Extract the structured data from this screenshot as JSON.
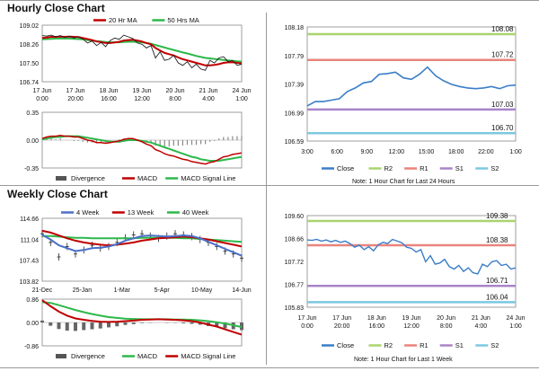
{
  "sections": {
    "hourly_title": "Hourly Close Chart",
    "weekly_title": "Weekly Close Chart"
  },
  "notes": {
    "hourly": "Note: 1 Hour Chart for Last 24 Hours",
    "weekly": "Note: 1 Hour Chart for Last 1 Week"
  },
  "colors": {
    "close": "#3a7dc9",
    "r2": "#a8d46f",
    "r1": "#e8847c",
    "s1": "#a884c8",
    "s2": "#7cc8e0",
    "ma20": "#c00000",
    "ma50": "#2db84b",
    "ma4": "#4a6fc9",
    "ma13": "#c00000",
    "ma40": "#2db84b",
    "macd": "#c00000",
    "signal": "#2db84b",
    "divergence": "#555555"
  },
  "chart_data": [
    {
      "id": "hourly_price",
      "type": "line",
      "ylim": [
        106.74,
        109.02
      ],
      "yticks": [
        "109.02",
        "108.26",
        "107.50",
        "106.74"
      ],
      "xticks": [
        "17 Jun\n0:00",
        "17 Jun\n20:00",
        "18 Jun\n16:00",
        "19 Jun\n12:00",
        "20 Jun\n8:00",
        "21 Jun\n4:00",
        "24 Jun\n1:00"
      ],
      "legend": [
        "20 Hr MA",
        "50 Hrs MA"
      ],
      "series": [
        {
          "name": "Close",
          "values": [
            108.6,
            108.58,
            108.62,
            108.55,
            108.6,
            108.52,
            108.58,
            108.5,
            108.55,
            108.45,
            108.3,
            108.38,
            108.2,
            108.32,
            108.15,
            108.4,
            108.5,
            108.45,
            108.62,
            108.55,
            108.48,
            108.3,
            108.25,
            108.1,
            108.2,
            107.7,
            107.95,
            107.6,
            107.65,
            107.8,
            107.5,
            107.4,
            107.55,
            107.3,
            107.45,
            107.25,
            107.2,
            107.6,
            107.5,
            107.7,
            107.75,
            107.55,
            107.6,
            107.4,
            107.45
          ]
        },
        {
          "name": "20 Hr MA",
          "values": [
            108.5,
            108.52,
            108.55,
            108.55,
            108.56,
            108.55,
            108.56,
            108.55,
            108.54,
            108.5,
            108.46,
            108.42,
            108.36,
            108.34,
            108.3,
            108.3,
            108.32,
            108.35,
            108.4,
            108.42,
            108.43,
            108.4,
            108.36,
            108.3,
            108.25,
            108.1,
            108.0,
            107.9,
            107.85,
            107.8,
            107.72,
            107.65,
            107.6,
            107.55,
            107.5,
            107.45,
            107.4,
            107.4,
            107.42,
            107.45,
            107.5,
            107.52,
            107.53,
            107.5,
            107.48
          ]
        },
        {
          "name": "50 Hrs MA",
          "values": [
            108.45,
            108.46,
            108.47,
            108.48,
            108.48,
            108.48,
            108.48,
            108.47,
            108.46,
            108.45,
            108.42,
            108.4,
            108.38,
            108.36,
            108.34,
            108.33,
            108.33,
            108.33,
            108.34,
            108.35,
            108.35,
            108.34,
            108.33,
            108.3,
            108.27,
            108.22,
            108.17,
            108.12,
            108.07,
            108.02,
            107.97,
            107.92,
            107.88,
            107.83,
            107.78,
            107.74,
            107.7,
            107.68,
            107.66,
            107.64,
            107.62,
            107.6,
            107.58,
            107.56,
            107.55
          ]
        }
      ]
    },
    {
      "id": "hourly_macd",
      "type": "line",
      "ylim": [
        -0.35,
        0.35
      ],
      "yticks": [
        "0.35",
        "0.00",
        "-0.35"
      ],
      "legend": [
        "Divergence",
        "MACD",
        "MACD Signal Line"
      ],
      "series": [
        {
          "name": "MACD",
          "values": [
            0.02,
            0.04,
            0.05,
            0.05,
            0.06,
            0.05,
            0.05,
            0.04,
            0.04,
            0.02,
            0.0,
            -0.01,
            -0.03,
            -0.03,
            -0.04,
            -0.03,
            -0.02,
            -0.01,
            0.01,
            0.02,
            0.02,
            0.0,
            -0.02,
            -0.05,
            -0.07,
            -0.12,
            -0.14,
            -0.17,
            -0.19,
            -0.2,
            -0.22,
            -0.24,
            -0.25,
            -0.27,
            -0.28,
            -0.29,
            -0.3,
            -0.28,
            -0.27,
            -0.24,
            -0.21,
            -0.2,
            -0.18,
            -0.17,
            -0.16
          ]
        },
        {
          "name": "MACD Signal Line",
          "values": [
            0.01,
            0.02,
            0.03,
            0.04,
            0.04,
            0.05,
            0.05,
            0.05,
            0.05,
            0.04,
            0.03,
            0.02,
            0.01,
            0.0,
            -0.01,
            -0.02,
            -0.02,
            -0.02,
            -0.01,
            0.0,
            0.0,
            0.0,
            -0.01,
            -0.02,
            -0.03,
            -0.05,
            -0.07,
            -0.09,
            -0.11,
            -0.13,
            -0.15,
            -0.17,
            -0.19,
            -0.21,
            -0.22,
            -0.24,
            -0.25,
            -0.26,
            -0.26,
            -0.26,
            -0.25,
            -0.24,
            -0.23,
            -0.22,
            -0.21
          ]
        },
        {
          "name": "Divergence",
          "values": [
            0.01,
            0.02,
            0.02,
            0.01,
            0.02,
            0.0,
            0.0,
            -0.01,
            -0.01,
            -0.02,
            -0.03,
            -0.03,
            -0.04,
            -0.03,
            -0.03,
            -0.01,
            0.0,
            0.01,
            0.02,
            0.02,
            0.02,
            0.0,
            -0.01,
            -0.03,
            -0.04,
            -0.07,
            -0.07,
            -0.08,
            -0.08,
            -0.07,
            -0.07,
            -0.07,
            -0.06,
            -0.06,
            -0.06,
            -0.05,
            -0.05,
            -0.02,
            -0.01,
            0.02,
            0.04,
            0.04,
            0.05,
            0.05,
            0.05
          ]
        }
      ]
    },
    {
      "id": "hourly_levels",
      "type": "line",
      "ylim": [
        106.59,
        108.18
      ],
      "yticks": [
        "108.18",
        "107.79",
        "107.39",
        "106.99",
        "106.59"
      ],
      "xticks": [
        "3:00",
        "6:00",
        "9:00",
        "12:00",
        "15:00",
        "18:00",
        "22:00",
        "1:00"
      ],
      "legend": [
        "Close",
        "R2",
        "R1",
        "S1",
        "S2"
      ],
      "levels": {
        "R2": 108.08,
        "R1": 107.72,
        "S1": 107.03,
        "S2": 106.7
      },
      "level_labels": [
        "108.08",
        "107.72",
        "107.03",
        "106.70"
      ],
      "series": [
        {
          "name": "Close",
          "values": [
            107.08,
            107.14,
            107.14,
            107.16,
            107.18,
            107.28,
            107.33,
            107.4,
            107.42,
            107.52,
            107.53,
            107.55,
            107.47,
            107.45,
            107.52,
            107.62,
            107.5,
            107.43,
            107.38,
            107.35,
            107.33,
            107.32,
            107.33,
            107.35,
            107.32,
            107.36,
            107.37
          ]
        }
      ]
    },
    {
      "id": "weekly_price",
      "type": "line",
      "ylim": [
        103.82,
        114.66
      ],
      "yticks": [
        "114.66",
        "111.04",
        "107.43",
        "103.82"
      ],
      "xticks": [
        "21-Dec",
        "25-Jan",
        "1-Mar",
        "5-Apr",
        "10-May",
        "14-Jun"
      ],
      "legend": [
        "4 Week",
        "13 Week",
        "40 Week"
      ],
      "series": [
        {
          "name": "Close",
          "values": [
            112.0,
            110.5,
            108.0,
            109.8,
            108.5,
            109.2,
            110.0,
            109.5,
            109.8,
            110.5,
            111.3,
            111.8,
            112.0,
            111.6,
            111.2,
            111.6,
            112.0,
            111.8,
            111.5,
            111.0,
            110.5,
            109.8,
            109.0,
            108.5,
            107.8
          ]
        },
        {
          "name": "4 Week",
          "values": [
            111.8,
            111.0,
            110.0,
            109.5,
            109.0,
            109.2,
            109.5,
            109.6,
            109.8,
            110.2,
            110.8,
            111.2,
            111.6,
            111.7,
            111.6,
            111.5,
            111.6,
            111.7,
            111.6,
            111.2,
            110.6,
            110.0,
            109.4,
            108.8,
            108.2
          ]
        },
        {
          "name": "13 Week",
          "values": [
            112.5,
            112.2,
            111.7,
            111.2,
            110.8,
            110.5,
            110.3,
            110.1,
            110.0,
            110.1,
            110.3,
            110.5,
            110.8,
            111.0,
            111.2,
            111.3,
            111.4,
            111.5,
            111.4,
            111.2,
            111.0,
            110.7,
            110.4,
            110.1,
            109.8
          ]
        },
        {
          "name": "40 Week",
          "values": [
            111.6,
            111.6,
            111.5,
            111.4,
            111.3,
            111.3,
            111.2,
            111.2,
            111.2,
            111.2,
            111.2,
            111.2,
            111.3,
            111.3,
            111.3,
            111.3,
            111.3,
            111.2,
            111.2,
            111.1,
            111.0,
            110.9,
            110.8,
            110.7,
            110.6
          ]
        }
      ]
    },
    {
      "id": "weekly_macd",
      "type": "line",
      "ylim": [
        -0.86,
        0.86
      ],
      "yticks": [
        "0.86",
        "0.00",
        "-0.86"
      ],
      "legend": [
        "Divergence",
        "MACD",
        "MACD Signal Line"
      ],
      "series": [
        {
          "name": "MACD",
          "values": [
            0.82,
            0.6,
            0.4,
            0.25,
            0.15,
            0.1,
            0.06,
            0.03,
            0.02,
            0.03,
            0.05,
            0.07,
            0.1,
            0.11,
            0.12,
            0.11,
            0.1,
            0.08,
            0.05,
            0.0,
            -0.08,
            -0.15,
            -0.25,
            -0.35,
            -0.45
          ]
        },
        {
          "name": "MACD Signal Line",
          "values": [
            0.75,
            0.72,
            0.64,
            0.55,
            0.46,
            0.38,
            0.31,
            0.25,
            0.2,
            0.17,
            0.14,
            0.13,
            0.12,
            0.12,
            0.12,
            0.12,
            0.11,
            0.11,
            0.1,
            0.08,
            0.05,
            0.01,
            -0.04,
            -0.1,
            -0.17
          ]
        },
        {
          "name": "Divergence",
          "values": [
            0.07,
            -0.12,
            -0.24,
            -0.3,
            -0.31,
            -0.28,
            -0.25,
            -0.22,
            -0.18,
            -0.14,
            -0.09,
            -0.06,
            -0.02,
            -0.01,
            0.0,
            -0.01,
            -0.01,
            -0.03,
            -0.05,
            -0.08,
            -0.13,
            -0.16,
            -0.21,
            -0.25,
            -0.28
          ]
        }
      ]
    },
    {
      "id": "weekly_levels",
      "type": "line",
      "ylim": [
        105.83,
        109.6
      ],
      "yticks": [
        "109.60",
        "108.66",
        "107.72",
        "106.77",
        "105.83"
      ],
      "xticks": [
        "17 Jun\n0:00",
        "17 Jun\n20:00",
        "18 Jun\n16:00",
        "19 Jun\n12:00",
        "20 Jun\n8:00",
        "21 Jun\n4:00",
        "24 Jun\n1:00"
      ],
      "legend": [
        "Close",
        "R2",
        "R1",
        "S1",
        "S2"
      ],
      "levels": {
        "R2": 109.38,
        "R1": 108.38,
        "S1": 106.71,
        "S2": 106.04
      },
      "level_labels": [
        "109.38",
        "108.38",
        "106.71",
        "106.04"
      ],
      "series": [
        {
          "name": "Close",
          "values": [
            108.6,
            108.58,
            108.62,
            108.55,
            108.6,
            108.52,
            108.58,
            108.5,
            108.55,
            108.45,
            108.3,
            108.38,
            108.2,
            108.32,
            108.15,
            108.4,
            108.5,
            108.45,
            108.62,
            108.55,
            108.48,
            108.3,
            108.25,
            108.1,
            108.2,
            107.7,
            107.95,
            107.6,
            107.65,
            107.8,
            107.5,
            107.4,
            107.55,
            107.3,
            107.45,
            107.25,
            107.2,
            107.6,
            107.5,
            107.7,
            107.75,
            107.55,
            107.6,
            107.4,
            107.45
          ]
        }
      ]
    }
  ]
}
